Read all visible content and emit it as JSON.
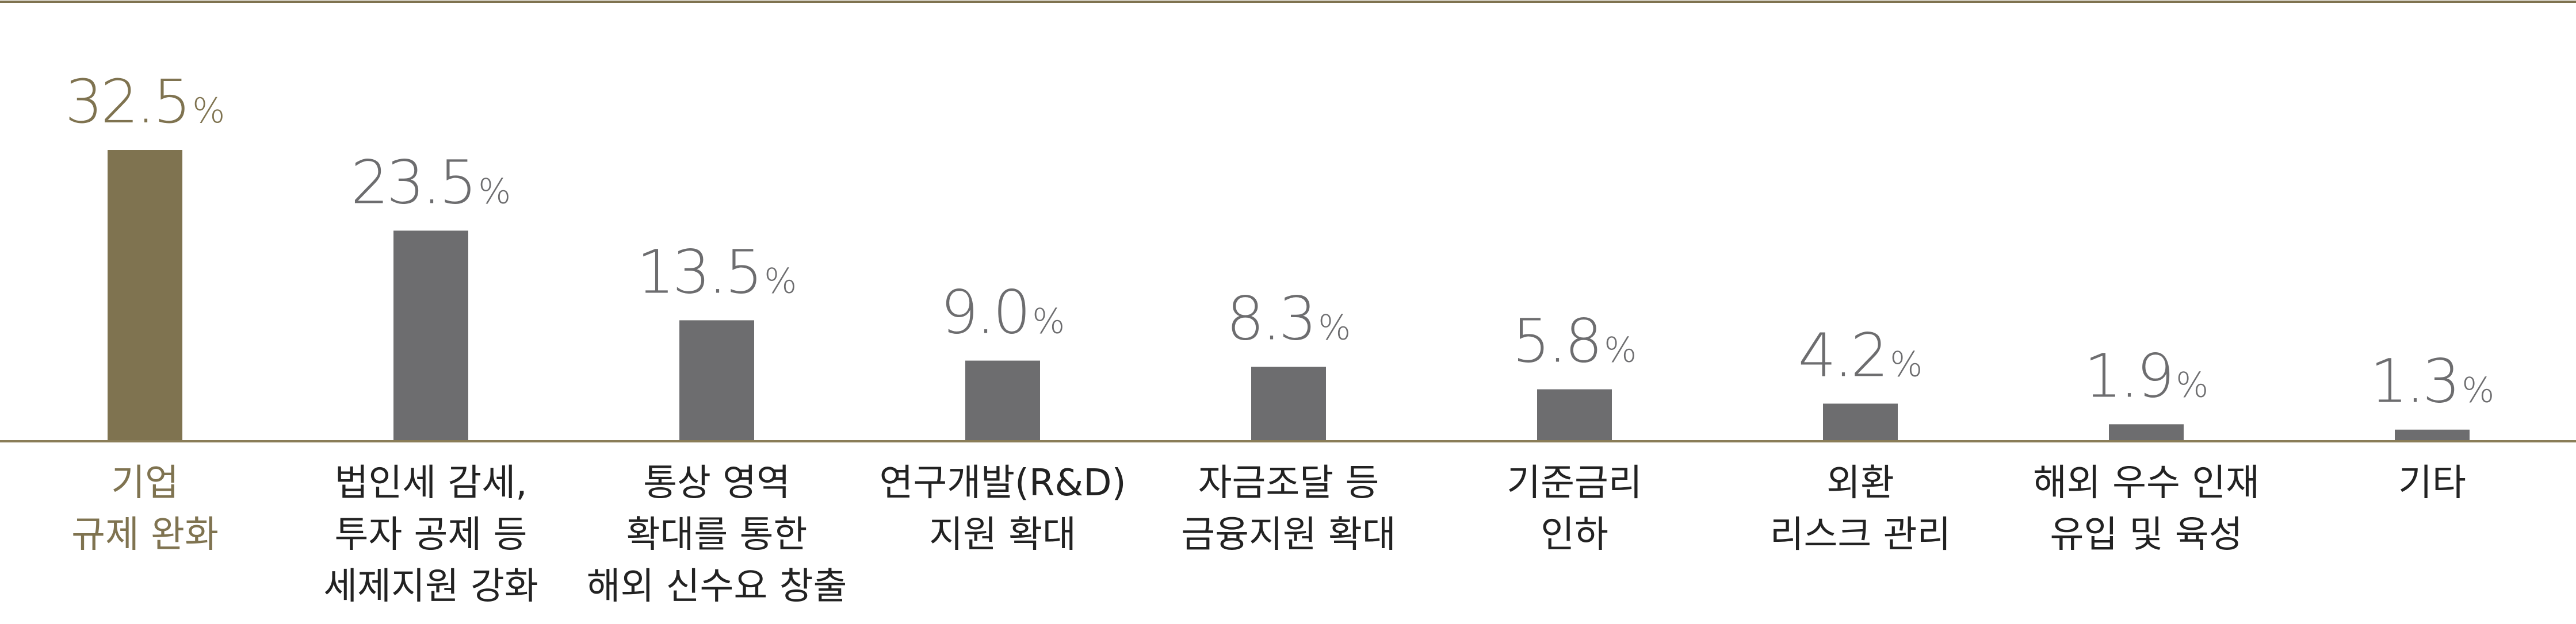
{
  "chart_data": {
    "type": "bar",
    "categories": [
      [
        "기업",
        "규제 완화"
      ],
      [
        "법인세 감세,",
        "투자 공제 등",
        "세제지원 강화"
      ],
      [
        "통상 영역",
        "확대를 통한",
        "해외 신수요 창출"
      ],
      [
        "연구개발(R&D)",
        "지원 확대"
      ],
      [
        "자금조달 등",
        "금융지원 확대"
      ],
      [
        "기준금리",
        "인하"
      ],
      [
        "외환",
        "리스크 관리"
      ],
      [
        "해외 우수 인재",
        "유입 및 육성"
      ],
      [
        "기타"
      ]
    ],
    "values": [
      32.5,
      23.5,
      13.5,
      9.0,
      8.3,
      5.8,
      4.2,
      1.9,
      1.3
    ],
    "value_labels": [
      "32.5",
      "23.5",
      "13.5",
      "9.0",
      "8.3",
      "5.8",
      "4.2",
      "1.9",
      "1.3"
    ],
    "unit": "%",
    "highlight_index": 0,
    "ylim": [
      0,
      35
    ],
    "grid": false,
    "colors": {
      "highlight": "#7f7350",
      "bar": "#6d6d6f",
      "highlight_text": "#7f7350",
      "value_text": "#6d6d6f",
      "label_text": "#222222",
      "rule": "#7f7350",
      "axis": "#8a7d58"
    }
  }
}
